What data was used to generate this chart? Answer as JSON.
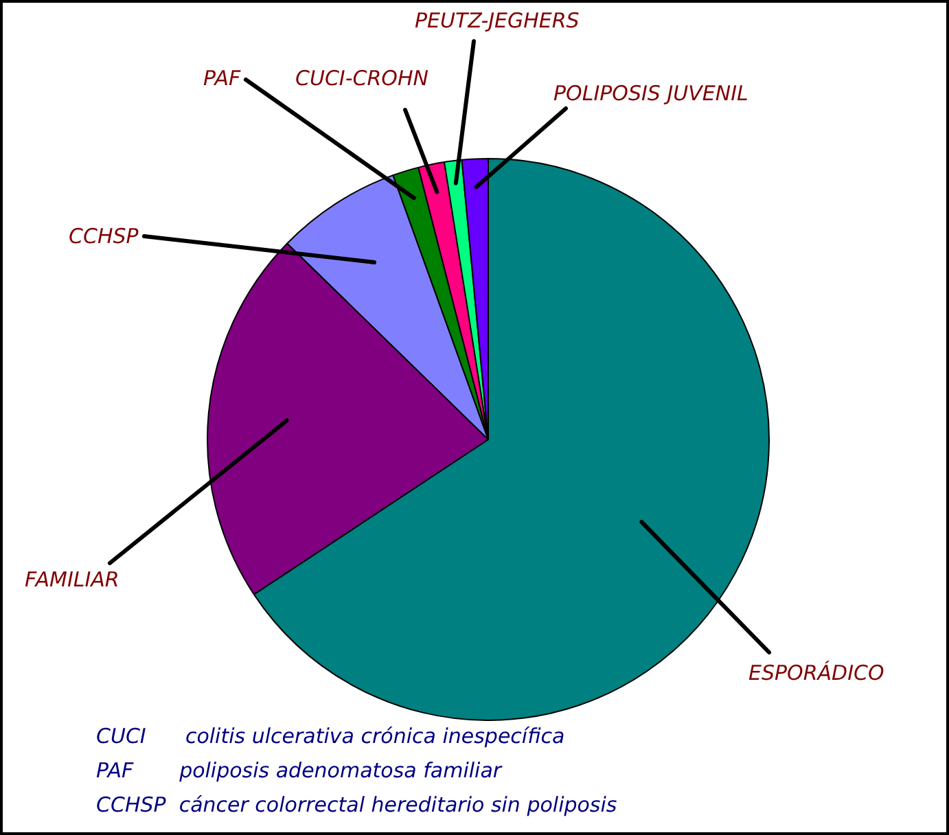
{
  "chart_data": {
    "type": "pie",
    "categories": [
      "ESPORÁDICO",
      "FAMILIAR",
      "CCHSP",
      "PAF",
      "CUCI-CROHN",
      "PEUTZ-JEGHERS",
      "POLIPOSIS JUVENIL"
    ],
    "values": [
      65.7,
      21.6,
      7.2,
      1.5,
      1.5,
      1,
      1.5
    ],
    "colors": [
      "#008080",
      "#800080",
      "#8080ff",
      "#008000",
      "#ff0080",
      "#00ff80",
      "#6600ff"
    ],
    "annotations": [
      "CUCI      colitis ulcerativa crónica inespecífica",
      "PAF       poliposis adenomatosa familiar",
      "CCHSP  cáncer colorrectal hereditario sin poliposis"
    ]
  }
}
